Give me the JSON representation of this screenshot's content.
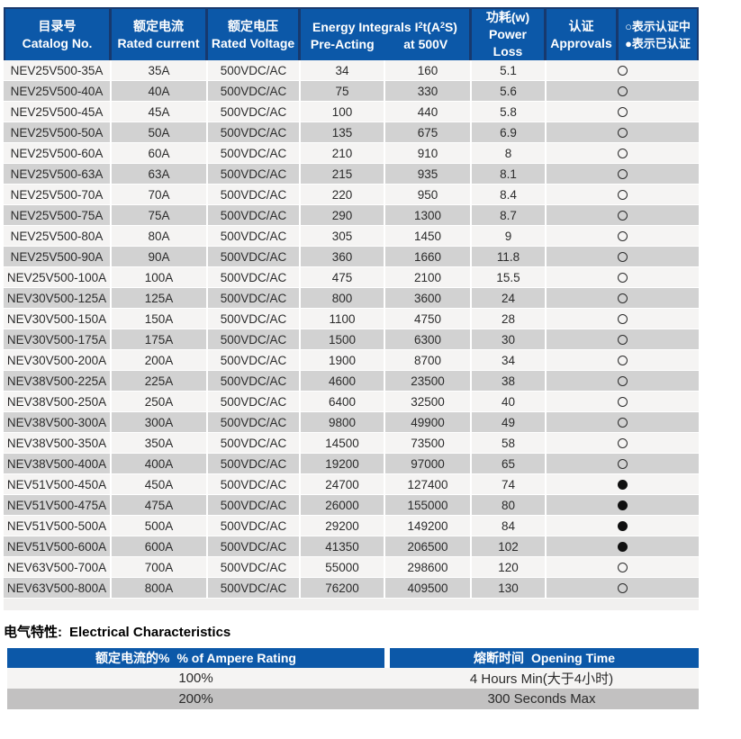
{
  "colors": {
    "header_blue": "#0C58A8",
    "navy": "#17396E",
    "row_light": "#F5F4F3",
    "row_gray": "#D2D2D2",
    "row_gray_dark": "#C2C1C1",
    "strip": "#F1F0EF",
    "text": "#2B2B2B",
    "white": "#FFFFFF"
  },
  "main_table": {
    "headers": {
      "catalog": {
        "zh": "目录号",
        "en": "Catalog No."
      },
      "current": {
        "zh": "额定电流",
        "en": "Rated current"
      },
      "voltage": {
        "zh": "额定电压",
        "en": "Rated Voltage"
      },
      "energy": {
        "p1": "Energy Integrals I",
        "s1": "2",
        "p2": "t(A",
        "s2": "2",
        "p3": "S)",
        "sub1": "Pre-Acting",
        "sub2": "at 500V"
      },
      "power": {
        "zh": "功耗(w)",
        "en": "Power Loss"
      },
      "approvals": {
        "zh": "认证",
        "en": "Approvals"
      },
      "legend": {
        "line1": "○表示认证中",
        "line2": "●表示已认证"
      }
    },
    "rows": [
      {
        "catalog": "NEV25V500-35A",
        "current": "35A",
        "voltage": "500VDC/AC",
        "pre_acting": "34",
        "at_500v": "160",
        "power_loss": "5.1",
        "approval": "pending"
      },
      {
        "catalog": "NEV25V500-40A",
        "current": "40A",
        "voltage": "500VDC/AC",
        "pre_acting": "75",
        "at_500v": "330",
        "power_loss": "5.6",
        "approval": "pending"
      },
      {
        "catalog": "NEV25V500-45A",
        "current": "45A",
        "voltage": "500VDC/AC",
        "pre_acting": "100",
        "at_500v": "440",
        "power_loss": "5.8",
        "approval": "pending"
      },
      {
        "catalog": "NEV25V500-50A",
        "current": "50A",
        "voltage": "500VDC/AC",
        "pre_acting": "135",
        "at_500v": "675",
        "power_loss": "6.9",
        "approval": "pending"
      },
      {
        "catalog": "NEV25V500-60A",
        "current": "60A",
        "voltage": "500VDC/AC",
        "pre_acting": "210",
        "at_500v": "910",
        "power_loss": "8",
        "approval": "pending"
      },
      {
        "catalog": "NEV25V500-63A",
        "current": "63A",
        "voltage": "500VDC/AC",
        "pre_acting": "215",
        "at_500v": "935",
        "power_loss": "8.1",
        "approval": "pending"
      },
      {
        "catalog": "NEV25V500-70A",
        "current": "70A",
        "voltage": "500VDC/AC",
        "pre_acting": "220",
        "at_500v": "950",
        "power_loss": "8.4",
        "approval": "pending"
      },
      {
        "catalog": "NEV25V500-75A",
        "current": "75A",
        "voltage": "500VDC/AC",
        "pre_acting": "290",
        "at_500v": "1300",
        "power_loss": "8.7",
        "approval": "pending"
      },
      {
        "catalog": "NEV25V500-80A",
        "current": "80A",
        "voltage": "500VDC/AC",
        "pre_acting": "305",
        "at_500v": "1450",
        "power_loss": "9",
        "approval": "pending"
      },
      {
        "catalog": "NEV25V500-90A",
        "current": "90A",
        "voltage": "500VDC/AC",
        "pre_acting": "360",
        "at_500v": "1660",
        "power_loss": "11.8",
        "approval": "pending"
      },
      {
        "catalog": "NEV25V500-100A",
        "current": "100A",
        "voltage": "500VDC/AC",
        "pre_acting": "475",
        "at_500v": "2100",
        "power_loss": "15.5",
        "approval": "pending"
      },
      {
        "catalog": "NEV30V500-125A",
        "current": "125A",
        "voltage": "500VDC/AC",
        "pre_acting": "800",
        "at_500v": "3600",
        "power_loss": "24",
        "approval": "pending"
      },
      {
        "catalog": "NEV30V500-150A",
        "current": "150A",
        "voltage": "500VDC/AC",
        "pre_acting": "1100",
        "at_500v": "4750",
        "power_loss": "28",
        "approval": "pending"
      },
      {
        "catalog": "NEV30V500-175A",
        "current": "175A",
        "voltage": "500VDC/AC",
        "pre_acting": "1500",
        "at_500v": "6300",
        "power_loss": "30",
        "approval": "pending"
      },
      {
        "catalog": "NEV30V500-200A",
        "current": "200A",
        "voltage": "500VDC/AC",
        "pre_acting": "1900",
        "at_500v": "8700",
        "power_loss": "34",
        "approval": "pending"
      },
      {
        "catalog": "NEV38V500-225A",
        "current": "225A",
        "voltage": "500VDC/AC",
        "pre_acting": "4600",
        "at_500v": "23500",
        "power_loss": "38",
        "approval": "pending"
      },
      {
        "catalog": "NEV38V500-250A",
        "current": "250A",
        "voltage": "500VDC/AC",
        "pre_acting": "6400",
        "at_500v": "32500",
        "power_loss": "40",
        "approval": "pending"
      },
      {
        "catalog": "NEV38V500-300A",
        "current": "300A",
        "voltage": "500VDC/AC",
        "pre_acting": "9800",
        "at_500v": "49900",
        "power_loss": "49",
        "approval": "pending"
      },
      {
        "catalog": "NEV38V500-350A",
        "current": "350A",
        "voltage": "500VDC/AC",
        "pre_acting": "14500",
        "at_500v": "73500",
        "power_loss": "58",
        "approval": "pending"
      },
      {
        "catalog": "NEV38V500-400A",
        "current": "400A",
        "voltage": "500VDC/AC",
        "pre_acting": "19200",
        "at_500v": "97000",
        "power_loss": "65",
        "approval": "pending"
      },
      {
        "catalog": "NEV51V500-450A",
        "current": "450A",
        "voltage": "500VDC/AC",
        "pre_acting": "24700",
        "at_500v": "127400",
        "power_loss": "74",
        "approval": "certified"
      },
      {
        "catalog": "NEV51V500-475A",
        "current": "475A",
        "voltage": "500VDC/AC",
        "pre_acting": "26000",
        "at_500v": "155000",
        "power_loss": "80",
        "approval": "certified"
      },
      {
        "catalog": "NEV51V500-500A",
        "current": "500A",
        "voltage": "500VDC/AC",
        "pre_acting": "29200",
        "at_500v": "149200",
        "power_loss": "84",
        "approval": "certified"
      },
      {
        "catalog": "NEV51V500-600A",
        "current": "600A",
        "voltage": "500VDC/AC",
        "pre_acting": "41350",
        "at_500v": "206500",
        "power_loss": "102",
        "approval": "certified"
      },
      {
        "catalog": "NEV63V500-700A",
        "current": "700A",
        "voltage": "500VDC/AC",
        "pre_acting": "55000",
        "at_500v": "298600",
        "power_loss": "120",
        "approval": "pending"
      },
      {
        "catalog": "NEV63V500-800A",
        "current": "800A",
        "voltage": "500VDC/AC",
        "pre_acting": "76200",
        "at_500v": "409500",
        "power_loss": "130",
        "approval": "pending"
      }
    ]
  },
  "section2": {
    "title_zh": "电气特性:",
    "title_en": "Electrical Characteristics",
    "table": {
      "col1_zh": "额定电流的%",
      "col1_en": "% of Ampere Rating",
      "col2_zh": "熔断时间",
      "col2_en": "Opening Time",
      "rows": [
        {
          "pct": "100%",
          "time": "4 Hours Min(大于4小时)"
        },
        {
          "pct": "200%",
          "time": "300 Seconds Max"
        }
      ]
    }
  }
}
